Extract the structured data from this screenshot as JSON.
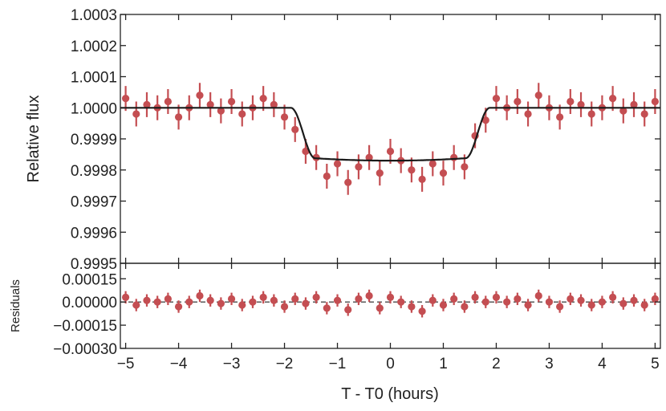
{
  "chart_data": [
    {
      "panel": "main",
      "type": "scatter",
      "xlabel": "",
      "ylabel": "Relative flux",
      "xlim": [
        -5.1,
        5.1
      ],
      "ylim": [
        0.9995,
        1.0003
      ],
      "yticks": [
        "0.9995",
        "0.9996",
        "0.9997",
        "0.9998",
        "0.9999",
        "1.0000",
        "1.0001",
        "1.0002",
        "1.0003"
      ],
      "grid": false,
      "colors": {
        "points": "#c44e52",
        "model": "#1a1a1a"
      },
      "model": {
        "name": "",
        "depth": 0.00017,
        "t_contact_outer": 1.88,
        "t_contact_inner": 1.42,
        "baseline": 1.0
      },
      "series": [
        {
          "x": [
            -5.0,
            -4.8,
            -4.6,
            -4.4,
            -4.2,
            -4.0,
            -3.8,
            -3.6,
            -3.4,
            -3.2,
            -3.0,
            -2.8,
            -2.6,
            -2.4,
            -2.2,
            -2.0,
            -1.8,
            -1.6,
            -1.4,
            -1.2,
            -1.0,
            -0.8,
            -0.6,
            -0.4,
            -0.2,
            0.0,
            0.2,
            0.4,
            0.6,
            0.8,
            1.0,
            1.2,
            1.4,
            1.6,
            1.8,
            2.0,
            2.2,
            2.4,
            2.6,
            2.8,
            3.0,
            3.2,
            3.4,
            3.6,
            3.8,
            4.0,
            4.2,
            4.4,
            4.6,
            4.8,
            5.0
          ],
          "y": [
            1.00003,
            0.99998,
            1.00001,
            1.0,
            1.00002,
            0.99997,
            1.0,
            1.00004,
            1.00001,
            0.99999,
            1.00002,
            0.99998,
            1.0,
            1.00003,
            1.00001,
            0.99997,
            0.99993,
            0.99986,
            0.99984,
            0.99978,
            0.99982,
            0.99976,
            0.99981,
            0.99984,
            0.99979,
            0.99986,
            0.99983,
            0.9998,
            0.99977,
            0.99982,
            0.99979,
            0.99984,
            0.99981,
            0.99991,
            0.99996,
            1.00003,
            1.0,
            1.00002,
            0.99998,
            1.00004,
            1.0,
            0.99997,
            1.00002,
            1.00001,
            0.99998,
            1.0,
            1.00003,
            0.99999,
            1.00001,
            0.99998,
            1.00002
          ],
          "yerr": 4e-05
        }
      ]
    },
    {
      "panel": "residuals",
      "type": "scatter",
      "xlabel": "T - T0 (hours)",
      "ylabel": "Residuals",
      "xlim": [
        -5.1,
        5.1
      ],
      "ylim": [
        -0.0003,
        0.00025
      ],
      "xticks": [
        "−5",
        "−4",
        "−3",
        "−2",
        "−1",
        "0",
        "1",
        "2",
        "3",
        "4",
        "5"
      ],
      "yticks": [
        "−0.00030",
        "−0.00015",
        "0.00000",
        "0.00015"
      ],
      "zero_line": "dashed",
      "grid": false,
      "series": [
        {
          "x": [
            -5.0,
            -4.8,
            -4.6,
            -4.4,
            -4.2,
            -4.0,
            -3.8,
            -3.6,
            -3.4,
            -3.2,
            -3.0,
            -2.8,
            -2.6,
            -2.4,
            -2.2,
            -2.0,
            -1.8,
            -1.6,
            -1.4,
            -1.2,
            -1.0,
            -0.8,
            -0.6,
            -0.4,
            -0.2,
            0.0,
            0.2,
            0.4,
            0.6,
            0.8,
            1.0,
            1.2,
            1.4,
            1.6,
            1.8,
            2.0,
            2.2,
            2.4,
            2.6,
            2.8,
            3.0,
            3.2,
            3.4,
            3.6,
            3.8,
            4.0,
            4.2,
            4.4,
            4.6,
            4.8,
            5.0
          ],
          "y": [
            3e-05,
            -2e-05,
            1e-05,
            0.0,
            2e-05,
            -3e-05,
            0.0,
            4e-05,
            1e-05,
            -1e-05,
            2e-05,
            -2e-05,
            0.0,
            3e-05,
            1e-05,
            -3e-05,
            2e-05,
            -1e-05,
            3e-05,
            -4e-05,
            1e-05,
            -5e-05,
            2e-05,
            4e-05,
            -4e-05,
            3e-05,
            0.0,
            -3e-05,
            -6e-05,
            1e-05,
            -2e-05,
            2e-05,
            -3e-05,
            3e-05,
            0.0,
            3e-05,
            0.0,
            2e-05,
            -2e-05,
            4e-05,
            0.0,
            -3e-05,
            2e-05,
            1e-05,
            -2e-05,
            0.0,
            3e-05,
            -1e-05,
            1e-05,
            -2e-05,
            2e-05
          ],
          "yerr": 4e-05
        }
      ]
    }
  ]
}
